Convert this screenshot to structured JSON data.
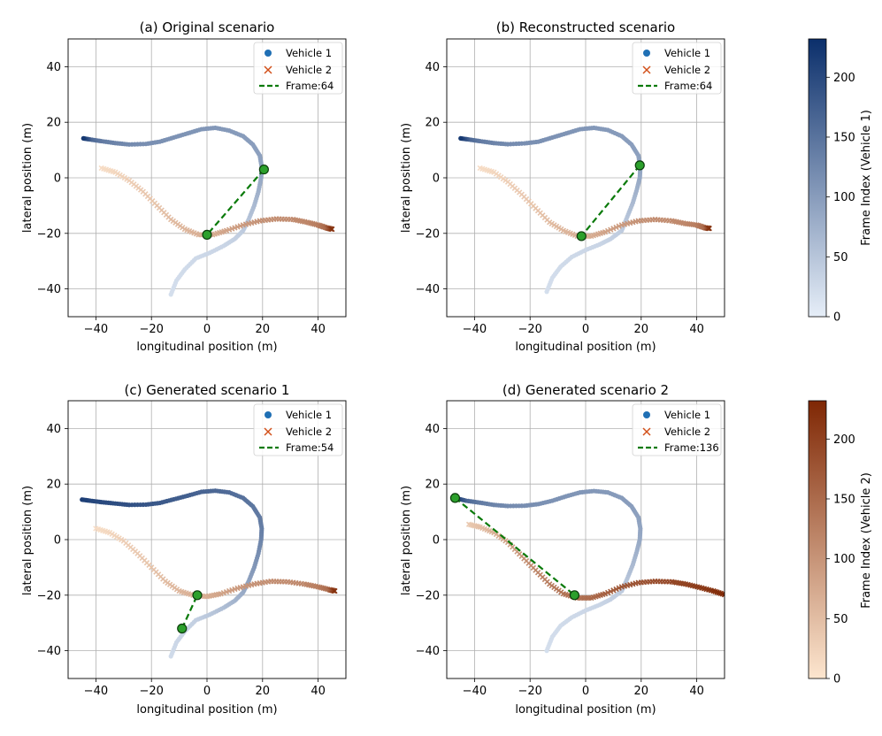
{
  "figure": {
    "xlabel": "longitudinal position (m)",
    "ylabel": "lateral position (m)"
  },
  "colorbars": [
    {
      "label": "Frame Index (Vehicle 1)",
      "ticks": [
        "0",
        "50",
        "100",
        "150",
        "200"
      ],
      "range": [
        0,
        232
      ],
      "colormap": "Blues",
      "colors": [
        "#e6eef8",
        "#0b2f6b"
      ]
    },
    {
      "label": "Frame Index (Vehicle 2)",
      "ticks": [
        "0",
        "50",
        "100",
        "150",
        "200"
      ],
      "range": [
        0,
        232
      ],
      "colormap": "Oranges",
      "colors": [
        "#fde6cf",
        "#7f2704"
      ]
    }
  ],
  "legend": {
    "vehicle1": "Vehicle 1",
    "vehicle2": "Vehicle 2",
    "vehicle1_color": "#1f6fb4",
    "vehicle2_color": "#d2501a",
    "frame_color": "#0a7a0a"
  },
  "chart_data": [
    {
      "type": "scatter",
      "title": "(a) Original scenario",
      "xlabel": "longitudinal position (m)",
      "ylabel": "lateral position (m)",
      "xlim": [
        -50,
        50
      ],
      "ylim": [
        -50,
        50
      ],
      "xticks": [
        -40,
        -20,
        0,
        20,
        40
      ],
      "yticks": [
        -40,
        -20,
        0,
        20,
        40
      ],
      "grid": true,
      "legend_position": "top-right",
      "frame_label": "Frame:64",
      "vehicle1_path": [
        [
          -13,
          -42
        ],
        [
          -11,
          -37
        ],
        [
          -8,
          -33
        ],
        [
          -4,
          -29
        ],
        [
          1,
          -27
        ],
        [
          6,
          -24.5
        ],
        [
          10,
          -22
        ],
        [
          13,
          -19
        ],
        [
          15,
          -15
        ],
        [
          17,
          -10
        ],
        [
          18.5,
          -5
        ],
        [
          19.5,
          0
        ],
        [
          19.7,
          4
        ],
        [
          19,
          8
        ],
        [
          16.5,
          12
        ],
        [
          13,
          15
        ],
        [
          8,
          17
        ],
        [
          3,
          18
        ],
        [
          -2,
          17.5
        ],
        [
          -7,
          16
        ],
        [
          -12,
          14.5
        ],
        [
          -17,
          13
        ],
        [
          -22,
          12.2
        ],
        [
          -28,
          12
        ],
        [
          -33,
          12.5
        ],
        [
          -38,
          13.2
        ],
        [
          -42,
          13.8
        ],
        [
          -44.5,
          14.2
        ]
      ],
      "vehicle1_brightness": [
        0.08,
        0.09,
        0.1,
        0.11,
        0.12,
        0.13,
        0.15,
        0.18,
        0.22,
        0.27,
        0.32,
        0.36,
        0.38,
        0.4,
        0.42,
        0.43,
        0.44,
        0.45,
        0.46,
        0.47,
        0.48,
        0.49,
        0.5,
        0.52,
        0.55,
        0.6,
        0.7,
        0.95
      ],
      "vehicle2_path": [
        [
          -38,
          3.5
        ],
        [
          -33,
          2
        ],
        [
          -28,
          -1
        ],
        [
          -23,
          -5
        ],
        [
          -18,
          -10
        ],
        [
          -13,
          -15
        ],
        [
          -8,
          -18.5
        ],
        [
          -3,
          -20.5
        ],
        [
          2,
          -20.5
        ],
        [
          7,
          -19
        ],
        [
          13,
          -17
        ],
        [
          19,
          -15.5
        ],
        [
          25,
          -14.8
        ],
        [
          31,
          -15
        ],
        [
          36,
          -16
        ],
        [
          40,
          -17
        ],
        [
          43,
          -18
        ],
        [
          45,
          -18.5
        ]
      ],
      "vehicle2_brightness": [
        0.05,
        0.08,
        0.12,
        0.15,
        0.18,
        0.22,
        0.25,
        0.28,
        0.3,
        0.35,
        0.4,
        0.45,
        0.47,
        0.48,
        0.5,
        0.55,
        0.65,
        0.95
      ],
      "vehicle1_frame_point": [
        20.5,
        3
      ],
      "vehicle2_frame_point": [
        0,
        -20.5
      ]
    },
    {
      "type": "scatter",
      "title": "(b) Reconstructed scenario",
      "xlabel": "longitudinal position (m)",
      "ylabel": "lateral position (m)",
      "xlim": [
        -50,
        50
      ],
      "ylim": [
        -50,
        50
      ],
      "xticks": [
        -40,
        -20,
        0,
        20,
        40
      ],
      "yticks": [
        -40,
        -20,
        0,
        20,
        40
      ],
      "grid": true,
      "legend_position": "top-right",
      "frame_label": "Frame:64",
      "vehicle1_path": [
        [
          -14,
          -41
        ],
        [
          -12,
          -36
        ],
        [
          -9,
          -32
        ],
        [
          -5,
          -28.5
        ],
        [
          0,
          -26
        ],
        [
          5,
          -24
        ],
        [
          9,
          -22
        ],
        [
          13,
          -19
        ],
        [
          15,
          -14
        ],
        [
          17,
          -9
        ],
        [
          18.5,
          -4
        ],
        [
          19.5,
          0
        ],
        [
          19.7,
          4
        ],
        [
          19,
          8
        ],
        [
          16.5,
          12
        ],
        [
          13,
          15
        ],
        [
          8,
          17.2
        ],
        [
          3,
          18
        ],
        [
          -2,
          17.5
        ],
        [
          -7,
          16
        ],
        [
          -12,
          14.5
        ],
        [
          -17,
          13
        ],
        [
          -22,
          12.4
        ],
        [
          -28,
          12.1
        ],
        [
          -33,
          12.5
        ],
        [
          -38,
          13.2
        ],
        [
          -42,
          13.8
        ],
        [
          -45,
          14.2
        ]
      ],
      "vehicle1_brightness": [
        0.08,
        0.09,
        0.1,
        0.11,
        0.12,
        0.13,
        0.15,
        0.18,
        0.22,
        0.27,
        0.32,
        0.36,
        0.38,
        0.4,
        0.42,
        0.43,
        0.44,
        0.45,
        0.46,
        0.47,
        0.48,
        0.49,
        0.5,
        0.52,
        0.55,
        0.6,
        0.7,
        0.95
      ],
      "vehicle2_path": [
        [
          -38,
          3.5
        ],
        [
          -33,
          2
        ],
        [
          -28,
          -1.5
        ],
        [
          -23,
          -6
        ],
        [
          -18,
          -11
        ],
        [
          -13,
          -16
        ],
        [
          -8,
          -19
        ],
        [
          -3,
          -21
        ],
        [
          2,
          -21
        ],
        [
          7,
          -19.5
        ],
        [
          13,
          -17
        ],
        [
          19,
          -15.5
        ],
        [
          25,
          -15
        ],
        [
          31,
          -15.5
        ],
        [
          36,
          -16.5
        ],
        [
          40,
          -17
        ],
        [
          43,
          -18
        ],
        [
          44.5,
          -18.2
        ]
      ],
      "vehicle2_brightness": [
        0.05,
        0.08,
        0.12,
        0.15,
        0.18,
        0.22,
        0.25,
        0.28,
        0.3,
        0.35,
        0.4,
        0.45,
        0.47,
        0.48,
        0.5,
        0.55,
        0.65,
        0.95
      ],
      "vehicle1_frame_point": [
        19.5,
        4.5
      ],
      "vehicle2_frame_point": [
        -1.5,
        -21
      ]
    },
    {
      "type": "scatter",
      "title": "(c) Generated scenario 1",
      "xlabel": "longitudinal position (m)",
      "ylabel": "lateral position (m)",
      "xlim": [
        -50,
        50
      ],
      "ylim": [
        -50,
        50
      ],
      "xticks": [
        -40,
        -20,
        0,
        20,
        40
      ],
      "yticks": [
        -40,
        -20,
        0,
        20,
        40
      ],
      "grid": true,
      "legend_position": "top-right",
      "frame_label": "Frame:54",
      "vehicle1_path": [
        [
          -13,
          -42
        ],
        [
          -11,
          -37
        ],
        [
          -8,
          -33
        ],
        [
          -4,
          -29
        ],
        [
          1,
          -27
        ],
        [
          6,
          -24.5
        ],
        [
          10,
          -22
        ],
        [
          13,
          -19
        ],
        [
          15,
          -15
        ],
        [
          17,
          -10
        ],
        [
          18.5,
          -5
        ],
        [
          19.5,
          0
        ],
        [
          19.7,
          4
        ],
        [
          19,
          8
        ],
        [
          16.5,
          12
        ],
        [
          13,
          15
        ],
        [
          8,
          17
        ],
        [
          3,
          17.6
        ],
        [
          -2,
          17.2
        ],
        [
          -7,
          15.8
        ],
        [
          -12,
          14.5
        ],
        [
          -17,
          13.2
        ],
        [
          -22,
          12.6
        ],
        [
          -28,
          12.5
        ],
        [
          -33,
          13
        ],
        [
          -38,
          13.5
        ],
        [
          -42,
          14
        ],
        [
          -45,
          14.4
        ]
      ],
      "vehicle1_brightness": [
        0.1,
        0.12,
        0.14,
        0.16,
        0.2,
        0.25,
        0.3,
        0.35,
        0.4,
        0.45,
        0.5,
        0.55,
        0.58,
        0.6,
        0.62,
        0.65,
        0.68,
        0.7,
        0.72,
        0.74,
        0.76,
        0.78,
        0.8,
        0.82,
        0.84,
        0.86,
        0.88,
        0.92
      ],
      "vehicle2_path": [
        [
          -40,
          4
        ],
        [
          -35,
          2.5
        ],
        [
          -30,
          -0.5
        ],
        [
          -25,
          -5
        ],
        [
          -20,
          -10
        ],
        [
          -15,
          -15
        ],
        [
          -10,
          -18.5
        ],
        [
          -5,
          -20
        ],
        [
          0,
          -20.5
        ],
        [
          5,
          -19.5
        ],
        [
          11,
          -17.5
        ],
        [
          17,
          -16
        ],
        [
          23,
          -15
        ],
        [
          29,
          -15.2
        ],
        [
          35,
          -16
        ],
        [
          40,
          -17
        ],
        [
          44,
          -18
        ],
        [
          46,
          -18.5
        ]
      ],
      "vehicle2_brightness": [
        0.05,
        0.08,
        0.12,
        0.15,
        0.18,
        0.22,
        0.25,
        0.28,
        0.3,
        0.35,
        0.4,
        0.45,
        0.47,
        0.48,
        0.5,
        0.55,
        0.65,
        0.95
      ],
      "vehicle1_frame_point": [
        -9,
        -32
      ],
      "vehicle2_frame_point": [
        -3.5,
        -20
      ]
    },
    {
      "type": "scatter",
      "title": "(d) Generated scenario 2",
      "xlabel": "longitudinal position (m)",
      "ylabel": "lateral position (m)",
      "xlim": [
        -50,
        50
      ],
      "ylim": [
        -50,
        50
      ],
      "xticks": [
        -40,
        -20,
        0,
        20,
        40
      ],
      "yticks": [
        -40,
        -20,
        0,
        20,
        40
      ],
      "grid": true,
      "legend_position": "top-right",
      "frame_label": "Frame:136",
      "vehicle1_path": [
        [
          -14,
          -40
        ],
        [
          -12,
          -35
        ],
        [
          -9,
          -31
        ],
        [
          -5,
          -28
        ],
        [
          0,
          -25.5
        ],
        [
          5,
          -23.5
        ],
        [
          9,
          -21.5
        ],
        [
          13,
          -18.5
        ],
        [
          15,
          -14
        ],
        [
          17,
          -9
        ],
        [
          18.5,
          -4
        ],
        [
          19.5,
          0
        ],
        [
          19.7,
          4
        ],
        [
          19,
          8
        ],
        [
          16.5,
          12
        ],
        [
          13,
          15
        ],
        [
          8,
          17
        ],
        [
          3,
          17.5
        ],
        [
          -2,
          17
        ],
        [
          -7,
          15.6
        ],
        [
          -12,
          14
        ],
        [
          -17,
          12.8
        ],
        [
          -22,
          12.2
        ],
        [
          -28,
          12.1
        ],
        [
          -33,
          12.5
        ],
        [
          -38,
          13.3
        ],
        [
          -43,
          14
        ],
        [
          -47,
          15
        ]
      ],
      "vehicle1_brightness": [
        0.08,
        0.09,
        0.1,
        0.11,
        0.12,
        0.13,
        0.15,
        0.18,
        0.22,
        0.27,
        0.32,
        0.36,
        0.38,
        0.4,
        0.42,
        0.43,
        0.44,
        0.45,
        0.46,
        0.47,
        0.48,
        0.49,
        0.5,
        0.52,
        0.55,
        0.6,
        0.7,
        0.95
      ],
      "vehicle2_path": [
        [
          -42,
          5.5
        ],
        [
          -38,
          4.5
        ],
        [
          -33,
          2.5
        ],
        [
          -28,
          -1
        ],
        [
          -23,
          -6
        ],
        [
          -18,
          -11
        ],
        [
          -13,
          -16
        ],
        [
          -8,
          -19.5
        ],
        [
          -3,
          -21
        ],
        [
          2,
          -21
        ],
        [
          7,
          -19.5
        ],
        [
          13,
          -17
        ],
        [
          19,
          -15.5
        ],
        [
          25,
          -15
        ],
        [
          31,
          -15.2
        ],
        [
          36,
          -16
        ],
        [
          41,
          -17.2
        ],
        [
          46,
          -18.5
        ],
        [
          50,
          -19.8
        ]
      ],
      "vehicle2_brightness": [
        0.15,
        0.2,
        0.28,
        0.35,
        0.42,
        0.5,
        0.55,
        0.6,
        0.62,
        0.65,
        0.7,
        0.75,
        0.78,
        0.8,
        0.83,
        0.86,
        0.9,
        0.95,
        0.98
      ],
      "vehicle1_frame_point": [
        -47,
        15
      ],
      "vehicle2_frame_point": [
        -4,
        -20
      ]
    }
  ]
}
